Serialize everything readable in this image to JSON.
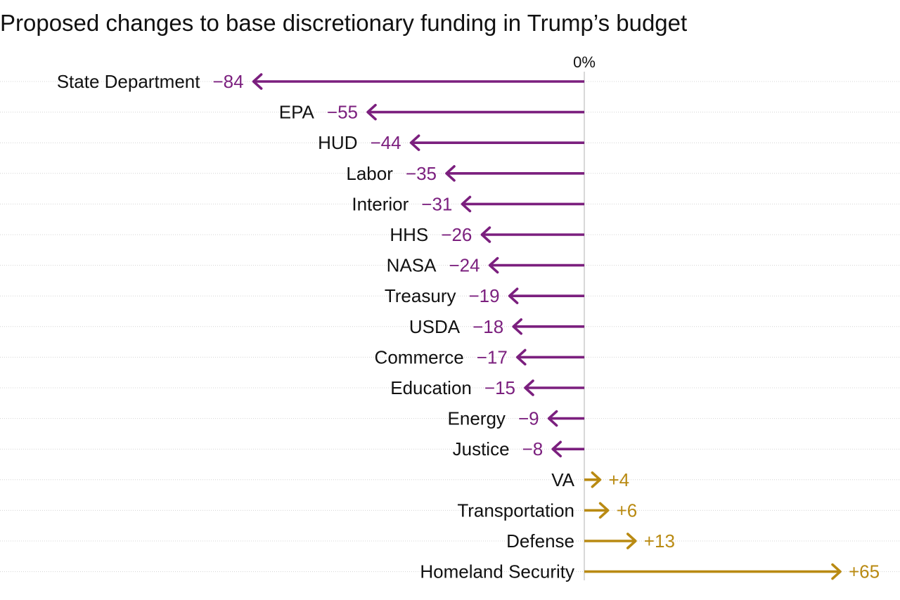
{
  "chart_data": {
    "type": "bar",
    "title": "Proposed changes to base discretionary funding in Trump’s budget",
    "zero_label": "0%",
    "unit": "percent",
    "categories": [
      "State Department",
      "EPA",
      "HUD",
      "Labor",
      "Interior",
      "HHS",
      "NASA",
      "Treasury",
      "USDA",
      "Commerce",
      "Education",
      "Energy",
      "Justice",
      "VA",
      "Transportation",
      "Defense",
      "Homeland Security"
    ],
    "values": [
      -84,
      -55,
      -44,
      -35,
      -31,
      -26,
      -24,
      -19,
      -18,
      -17,
      -15,
      -9,
      -8,
      4,
      6,
      13,
      65
    ],
    "value_labels": [
      "−84",
      "−55",
      "−44",
      "−35",
      "−31",
      "−26",
      "−24",
      "−19",
      "−18",
      "−17",
      "−15",
      "−9",
      "−8",
      "+4",
      "+6",
      "+13",
      "+65"
    ],
    "colors": {
      "negative": "#7b1f7e",
      "positive": "#b98a12"
    }
  }
}
